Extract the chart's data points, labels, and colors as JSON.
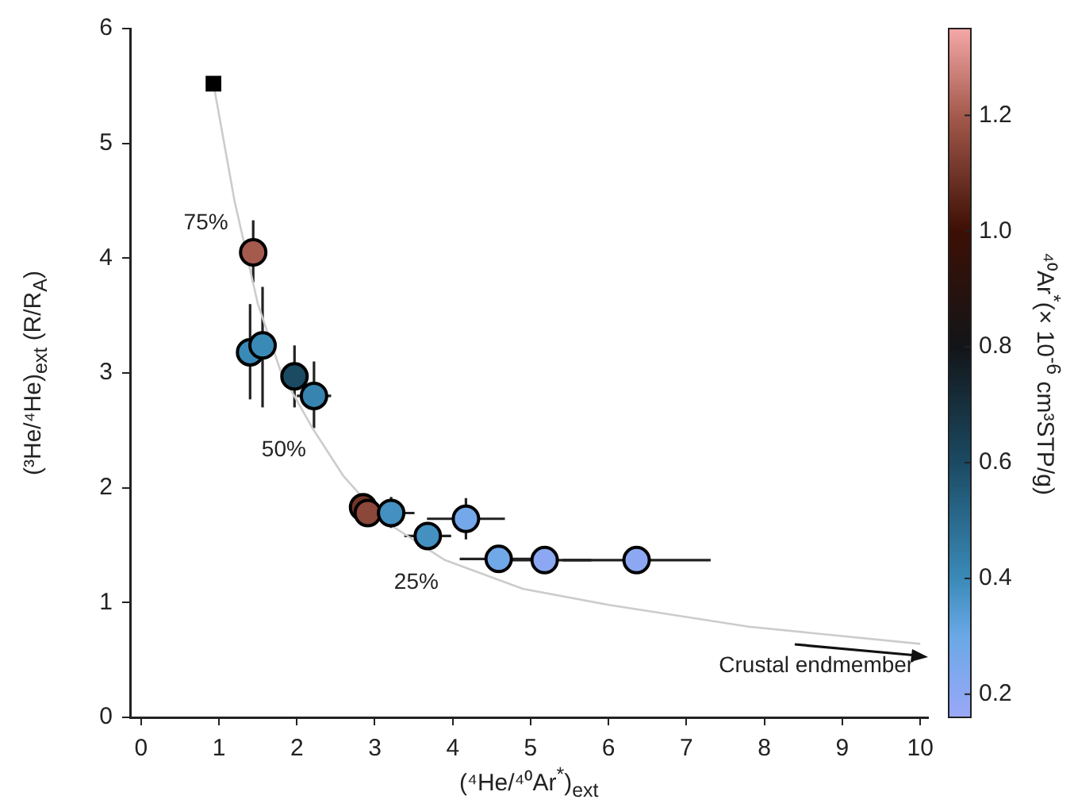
{
  "chart_data": {
    "type": "scatter",
    "xlabel": "(⁴He/⁴⁰Ar$^{*}$)$_{ext}$",
    "ylabel": "(³He/⁴He)$_{ext}$ (R/R$_{A}$)",
    "clabel": "⁴⁰Ar$^{*}$(× 10$^{-6}$ cm³STP/g)",
    "xlim": [
      -0.14,
      10.1
    ],
    "xticks": [
      0,
      1,
      2,
      3,
      4,
      5,
      6,
      7,
      8,
      9,
      10
    ],
    "ylim": [
      0,
      6
    ],
    "yticks": [
      0,
      1,
      2,
      3,
      4,
      5,
      6
    ],
    "clim": [
      0.16,
      1.35
    ],
    "cticks": [
      {
        "value": 0.2,
        "label": "0.2"
      },
      {
        "value": 0.4,
        "label": "0.4"
      },
      {
        "value": 0.6,
        "label": "0.6"
      },
      {
        "value": 0.8,
        "label": "0.8"
      },
      {
        "value": 1.0,
        "label": "1.0"
      },
      {
        "value": 1.2,
        "label": "1.2"
      }
    ],
    "grid": false,
    "legend": false,
    "series": [
      {
        "type": "line",
        "color": "#cccccc",
        "marker": "none",
        "x": [
          0.93,
          1.2,
          1.5,
          1.8,
          2.2,
          2.6,
          3.1,
          3.9,
          4.9,
          6,
          7.8,
          10
        ],
        "values": [
          5.52,
          4.5,
          3.6,
          3.0,
          2.52,
          2.1,
          1.72,
          1.37,
          1.12,
          0.98,
          0.79,
          0.64
        ]
      },
      {
        "type": "scatter",
        "marker": "square",
        "color": "#000000",
        "x": [
          0.93
        ],
        "values": [
          5.52
        ]
      },
      {
        "type": "scatter",
        "marker": "circle",
        "x": [
          1.44,
          1.4,
          1.56,
          1.97,
          2.22,
          2.85,
          2.91,
          3.21,
          3.68,
          4.17,
          4.59,
          5.18,
          6.36
        ],
        "values": [
          4.05,
          3.18,
          3.24,
          2.97,
          2.8,
          1.83,
          1.78,
          1.78,
          1.58,
          1.73,
          1.38,
          1.37,
          1.37
        ],
        "cvalues": [
          1.2,
          0.4,
          0.4,
          0.6,
          0.42,
          1.1,
          1.15,
          0.38,
          0.38,
          0.27,
          0.28,
          0.2,
          0.2
        ],
        "colors": [
          "#a45a4c",
          "#3a8ab8",
          "#3a8ab8",
          "#1b4a63",
          "#3784b0",
          "#713528",
          "#8a473a",
          "#4490c1",
          "#4490c1",
          "#74a8ea",
          "#71a8e8",
          "#8ca8f2",
          "#8ca8f2"
        ],
        "errors": [
          [
            3.79,
            4.33
          ],
          [
            2.77,
            3.6
          ],
          [
            2.7,
            3.75
          ],
          [
            2.7,
            3.24
          ],
          [
            2.52,
            3.1
          ],
          null,
          null,
          [
            1.65,
            1.92
          ],
          0.1,
          0.18,
          0.08,
          0.12,
          0.1
        ],
        "xerrors": [
          null,
          null,
          0.12,
          null,
          0.22,
          null,
          null,
          0.3,
          0.3,
          0.5,
          0.5,
          0.6,
          0.95
        ]
      }
    ],
    "annotations": [
      {
        "text": "75%",
        "x": 1.2,
        "y": 4.5
      },
      {
        "text": "50%",
        "x": 2.2,
        "y": 2.52
      },
      {
        "text": "25%",
        "x": 3.9,
        "y": 1.37
      },
      {
        "text": "Crustal endmember",
        "x": 10,
        "y": 0.64
      }
    ]
  }
}
